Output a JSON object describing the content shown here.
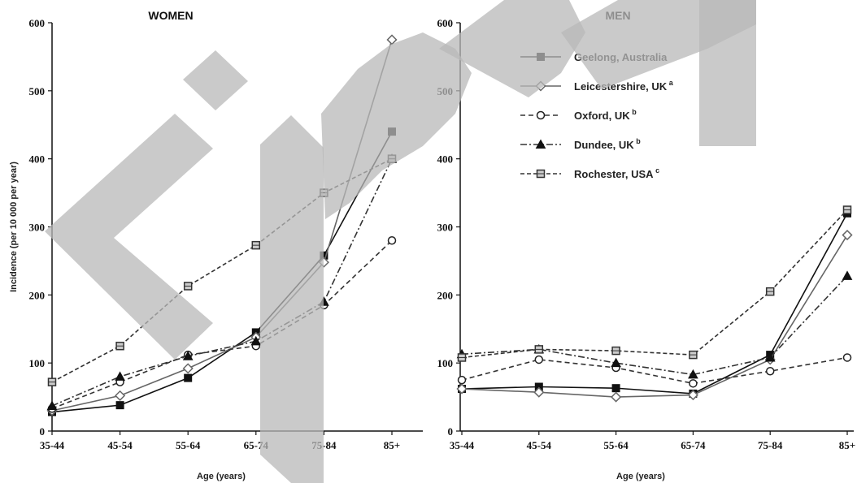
{
  "chart_data": [
    {
      "type": "line",
      "title": "WOMEN",
      "xlabel": "Age (years)",
      "ylabel": "Incidence (per 10 000 per year)",
      "categories": [
        "35-44",
        "45-54",
        "55-64",
        "65-74",
        "75-84",
        "85+"
      ],
      "ylim": [
        0,
        600
      ],
      "yticks": [
        "0",
        "100",
        "200",
        "300",
        "400",
        "500",
        "600"
      ],
      "series": [
        {
          "name": "Geelong, Australia",
          "values": [
            28,
            38,
            78,
            145,
            258,
            440
          ]
        },
        {
          "name": "Leicestershire, UK",
          "values": [
            30,
            52,
            92,
            138,
            248,
            575
          ]
        },
        {
          "name": "Oxford, UK",
          "values": [
            33,
            72,
            112,
            125,
            185,
            280
          ]
        },
        {
          "name": "Dundee, UK",
          "values": [
            37,
            80,
            110,
            132,
            190,
            400
          ]
        },
        {
          "name": "Rochester, USA",
          "values": [
            72,
            125,
            213,
            273,
            350,
            400
          ]
        }
      ]
    },
    {
      "type": "line",
      "title": "MEN",
      "xlabel": "Age (years)",
      "ylabel": "",
      "categories": [
        "35-44",
        "45-54",
        "55-64",
        "65-74",
        "75-84",
        "85+"
      ],
      "ylim": [
        0,
        600
      ],
      "yticks": [
        "0",
        "100",
        "200",
        "300",
        "400",
        "500",
        "600"
      ],
      "series": [
        {
          "name": "Geelong, Australia",
          "values": [
            62,
            65,
            63,
            55,
            112,
            320
          ]
        },
        {
          "name": "Leicestershire, UK",
          "values": [
            62,
            57,
            50,
            53,
            105,
            288
          ]
        },
        {
          "name": "Oxford, UK",
          "values": [
            75,
            105,
            93,
            70,
            88,
            108
          ]
        },
        {
          "name": "Dundee, UK",
          "values": [
            113,
            120,
            100,
            83,
            108,
            228
          ]
        },
        {
          "name": "Rochester, USA",
          "values": [
            108,
            120,
            118,
            112,
            205,
            325
          ]
        }
      ]
    }
  ],
  "legend": {
    "placement": "top-right of MEN panel",
    "items": [
      {
        "label": "Geelong, Australia",
        "sup": ""
      },
      {
        "label": "Leicestershire, UK",
        "sup": "a"
      },
      {
        "label": "Oxford, UK",
        "sup": "b"
      },
      {
        "label": "Dundee, UK",
        "sup": "b"
      },
      {
        "label": "Rochester, USA",
        "sup": "c"
      }
    ]
  },
  "styles": [
    {
      "marker": "square-filled",
      "dash": "",
      "color": "#111111"
    },
    {
      "marker": "diamond-open",
      "dash": "",
      "color": "#666666"
    },
    {
      "marker": "circle-open",
      "dash": "6,4",
      "color": "#333333"
    },
    {
      "marker": "triangle-filled",
      "dash": "8,3,2,3",
      "color": "#333333"
    },
    {
      "marker": "square-hatched",
      "dash": "5,3",
      "color": "#333333"
    }
  ],
  "watermark_color": "#b8b8b8"
}
